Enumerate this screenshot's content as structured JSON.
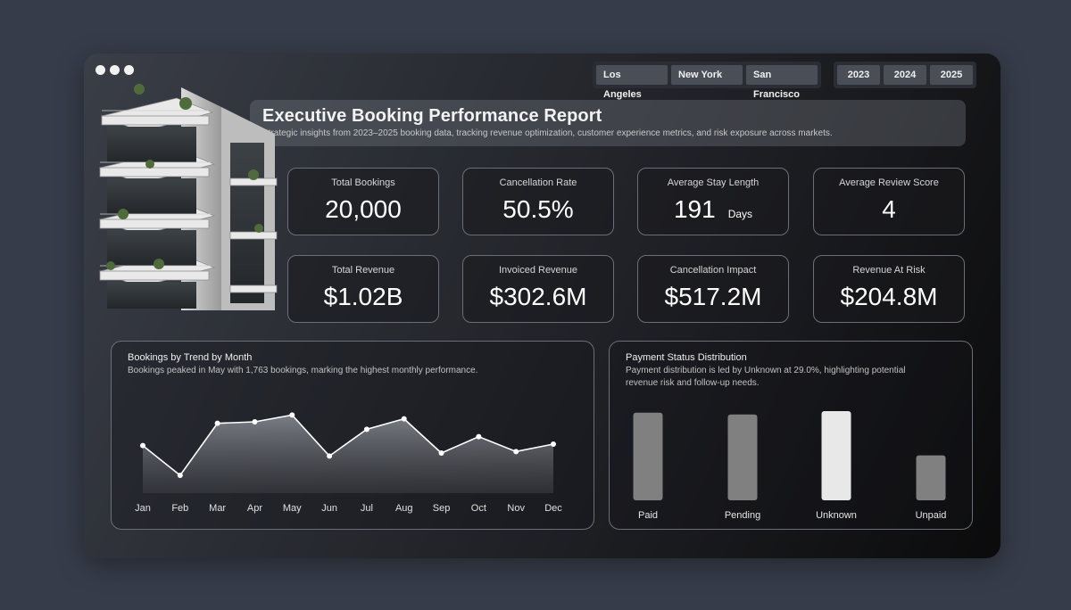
{
  "filters": {
    "cities": [
      "Los Angeles",
      "New York",
      "San Francisco"
    ],
    "years": [
      "2023",
      "2024",
      "2025"
    ]
  },
  "header": {
    "title": "Executive Booking Performance Report",
    "subtitle": "Strategic insights from 2023–2025 booking data, tracking revenue optimization, customer experience metrics, and risk exposure across markets."
  },
  "kpis": [
    {
      "label": "Total Bookings",
      "value": "20,000"
    },
    {
      "label": "Cancellation Rate",
      "value": "50.5%"
    },
    {
      "label": "Average Stay Length",
      "value": "191",
      "unit": "Days"
    },
    {
      "label": "Average Review Score",
      "value": "4"
    },
    {
      "label": "Total Revenue",
      "value": "$1.02B"
    },
    {
      "label": "Invoiced Revenue",
      "value": "$302.6M"
    },
    {
      "label": "Cancellation Impact",
      "value": "$517.2M"
    },
    {
      "label": "Revenue At Risk",
      "value": "$204.8M"
    }
  ],
  "trend_panel": {
    "title": "Bookings by Trend by Month",
    "subtitle": "Bookings peaked in May with 1,763 bookings, marking the highest monthly performance."
  },
  "payment_panel": {
    "title": "Payment Status Distribution",
    "subtitle_line1": "Payment distribution is led by Unknown at 29.0%, highlighting potential",
    "subtitle_line2": "revenue risk and follow-up needs."
  },
  "colors": {
    "accent_bar": "#e8e8e8",
    "bar": "#808080",
    "line": "#ffffff"
  },
  "chart_data": [
    {
      "type": "area",
      "categories": [
        "Jan",
        "Feb",
        "Mar",
        "Apr",
        "May",
        "Jun",
        "Jul",
        "Aug",
        "Sep",
        "Oct",
        "Nov",
        "Dec"
      ],
      "values": [
        1660,
        1560,
        1735,
        1740,
        1763,
        1625,
        1715,
        1750,
        1635,
        1690,
        1640,
        1665
      ],
      "ylim": [
        1500,
        1800
      ]
    },
    {
      "type": "bar",
      "categories": [
        "Paid",
        "Pending",
        "Unknown",
        "Unpaid"
      ],
      "values": [
        28.5,
        27.9,
        29.0,
        14.6
      ],
      "highlight": "Unknown",
      "ylim": [
        0,
        29.0
      ]
    }
  ]
}
